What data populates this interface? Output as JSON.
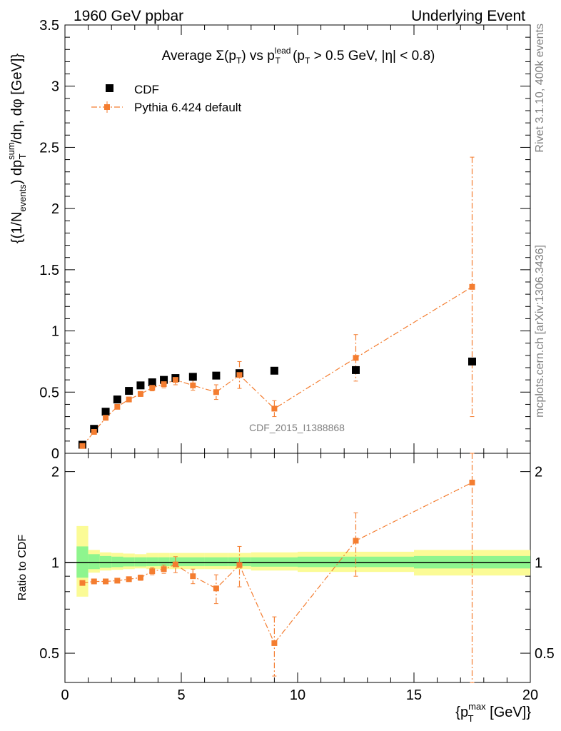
{
  "header": {
    "left": "1960 GeV ppbar",
    "right": "Underlying Event"
  },
  "side_labels": {
    "rivet": "Rivet 3.1.10,  400k events",
    "mcplots": "mcplots.cern.ch [arXiv:1306.3436]"
  },
  "colors": {
    "data": "#000000",
    "mc": "#f47d30",
    "band_inner": "#8ef58e",
    "band_outer": "#fbfb96"
  },
  "chart_data": [
    {
      "type": "scatter",
      "panel": "main",
      "title": "Average Σ(p_T) vs p_T^lead (p_T > 0.5 GeV, |η| < 0.8)",
      "ylabel": "{(1/N_events) dp_T^sum/dη, dφ [GeV]}",
      "watermark": "CDF_2015_I1388868",
      "xlim": [
        0,
        20
      ],
      "ylim": [
        0,
        3.5
      ],
      "yticks": [
        0,
        0.5,
        1,
        1.5,
        2,
        2.5,
        3,
        3.5
      ],
      "legend_position": "top-left",
      "series": [
        {
          "name": "CDF",
          "style": "markers",
          "x": [
            0.75,
            1.25,
            1.75,
            2.25,
            2.75,
            3.25,
            3.75,
            4.25,
            4.75,
            5.5,
            6.5,
            7.5,
            9.0,
            12.5,
            17.5
          ],
          "y": [
            0.07,
            0.2,
            0.34,
            0.44,
            0.51,
            0.555,
            0.58,
            0.6,
            0.615,
            0.625,
            0.635,
            0.655,
            0.675,
            0.68,
            0.75
          ],
          "yerr": [
            0.005,
            0.005,
            0.006,
            0.007,
            0.007,
            0.008,
            0.008,
            0.009,
            0.01,
            0.01,
            0.012,
            0.015,
            0.02,
            0.03,
            0.04
          ]
        },
        {
          "name": "Pythia 6.424 default",
          "style": "dash-dot line with markers",
          "x": [
            0.75,
            1.25,
            1.75,
            2.25,
            2.75,
            3.25,
            3.75,
            4.25,
            4.75,
            5.5,
            6.5,
            7.5,
            9.0,
            12.5,
            17.5
          ],
          "y": [
            0.06,
            0.175,
            0.29,
            0.38,
            0.44,
            0.485,
            0.535,
            0.565,
            0.6,
            0.555,
            0.5,
            0.64,
            0.365,
            0.78,
            1.36
          ],
          "yerr": [
            0.005,
            0.008,
            0.01,
            0.012,
            0.015,
            0.02,
            0.025,
            0.03,
            0.04,
            0.04,
            0.06,
            0.11,
            0.065,
            0.19,
            1.06
          ]
        }
      ]
    },
    {
      "type": "scatter",
      "panel": "ratio",
      "ylabel": "Ratio to CDF",
      "xlabel": "{p_T^max [GeV]}",
      "xlim": [
        0,
        20
      ],
      "ylim": [
        0.4,
        2.3
      ],
      "log_y": true,
      "yticks": [
        0.5,
        1,
        2
      ],
      "xticks": [
        0,
        5,
        10,
        15,
        20
      ],
      "reference_line": 1,
      "bands": {
        "edges": [
          0.5,
          1.0,
          1.5,
          2.0,
          2.5,
          3.0,
          3.5,
          4.0,
          4.5,
          5.0,
          6.0,
          7.0,
          8.0,
          10.0,
          15.0,
          20.0
        ],
        "inner_lo": [
          0.89,
          0.95,
          0.96,
          0.965,
          0.97,
          0.97,
          0.972,
          0.972,
          0.972,
          0.972,
          0.972,
          0.972,
          0.968,
          0.965,
          0.955
        ],
        "inner_hi": [
          1.13,
          1.065,
          1.05,
          1.045,
          1.04,
          1.04,
          1.04,
          1.04,
          1.04,
          1.04,
          1.04,
          1.04,
          1.04,
          1.045,
          1.05
        ],
        "outer_lo": [
          0.77,
          0.925,
          0.94,
          0.945,
          0.95,
          0.955,
          0.95,
          0.95,
          0.95,
          0.95,
          0.95,
          0.95,
          0.94,
          0.93,
          0.905
        ],
        "outer_hi": [
          1.32,
          1.1,
          1.08,
          1.075,
          1.07,
          1.065,
          1.075,
          1.075,
          1.075,
          1.075,
          1.075,
          1.075,
          1.08,
          1.085,
          1.1
        ]
      },
      "series": [
        {
          "name": "Pythia 6.424 default",
          "x": [
            0.75,
            1.25,
            1.75,
            2.25,
            2.75,
            3.25,
            3.75,
            4.25,
            4.75,
            5.5,
            6.5,
            7.5,
            9.0,
            12.5,
            17.5
          ],
          "y": [
            0.855,
            0.865,
            0.865,
            0.87,
            0.88,
            0.89,
            0.935,
            0.95,
            0.985,
            0.9,
            0.82,
            0.98,
            0.54,
            1.18,
            1.84
          ],
          "yerr": [
            0.01,
            0.012,
            0.012,
            0.012,
            0.014,
            0.018,
            0.025,
            0.03,
            0.06,
            0.05,
            0.09,
            0.15,
            0.12,
            0.28,
            1.5
          ]
        }
      ]
    }
  ]
}
